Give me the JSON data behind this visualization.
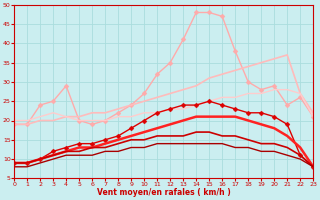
{
  "xlabel": "Vent moyen/en rafales ( km/h )",
  "xlim": [
    0,
    23
  ],
  "ylim": [
    5,
    50
  ],
  "yticks": [
    5,
    10,
    15,
    20,
    25,
    30,
    35,
    40,
    45,
    50
  ],
  "xticks": [
    0,
    1,
    2,
    3,
    4,
    5,
    6,
    7,
    8,
    9,
    10,
    11,
    12,
    13,
    14,
    15,
    16,
    17,
    18,
    19,
    20,
    21,
    22,
    23
  ],
  "bg_color": "#cbeef0",
  "grid_color": "#aadddd",
  "series": [
    {
      "x": [
        0,
        1,
        2,
        3,
        4,
        5,
        6,
        7,
        8,
        9,
        10,
        11,
        12,
        13,
        14,
        15,
        16,
        17,
        18,
        19,
        20,
        21,
        22,
        23
      ],
      "y": [
        19,
        19,
        24,
        25,
        29,
        20,
        19,
        20,
        22,
        24,
        27,
        32,
        35,
        41,
        48,
        48,
        47,
        38,
        30,
        28,
        29,
        24,
        26,
        21
      ],
      "color": "#ffaaaa",
      "marker": "D",
      "markersize": 2.5,
      "linewidth": 1.0
    },
    {
      "x": [
        0,
        1,
        2,
        3,
        4,
        5,
        6,
        7,
        8,
        9,
        10,
        11,
        12,
        13,
        14,
        15,
        16,
        17,
        18,
        19,
        20,
        21,
        22,
        23
      ],
      "y": [
        19,
        19,
        20,
        20,
        21,
        21,
        22,
        22,
        23,
        24,
        25,
        26,
        27,
        28,
        29,
        31,
        32,
        33,
        34,
        35,
        36,
        37,
        27,
        22
      ],
      "color": "#ffbbbb",
      "marker": null,
      "markersize": 0,
      "linewidth": 1.2
    },
    {
      "x": [
        0,
        1,
        2,
        3,
        4,
        5,
        6,
        7,
        8,
        9,
        10,
        11,
        12,
        13,
        14,
        15,
        16,
        17,
        18,
        19,
        20,
        21,
        22,
        23
      ],
      "y": [
        20,
        20,
        21,
        22,
        21,
        20,
        20,
        20,
        21,
        21,
        22,
        22,
        23,
        23,
        24,
        25,
        26,
        26,
        27,
        27,
        28,
        28,
        27,
        21
      ],
      "color": "#ffcccc",
      "marker": null,
      "markersize": 0,
      "linewidth": 1.0
    },
    {
      "x": [
        0,
        1,
        2,
        3,
        4,
        5,
        6,
        7,
        8,
        9,
        10,
        11,
        12,
        13,
        14,
        15,
        16,
        17,
        18,
        19,
        20,
        21,
        22,
        23
      ],
      "y": [
        9,
        9,
        10,
        12,
        13,
        14,
        14,
        15,
        16,
        18,
        20,
        22,
        23,
        24,
        24,
        25,
        24,
        23,
        22,
        22,
        21,
        19,
        11,
        8
      ],
      "color": "#dd0000",
      "marker": "D",
      "markersize": 2.5,
      "linewidth": 1.0
    },
    {
      "x": [
        0,
        1,
        2,
        3,
        4,
        5,
        6,
        7,
        8,
        9,
        10,
        11,
        12,
        13,
        14,
        15,
        16,
        17,
        18,
        19,
        20,
        21,
        22,
        23
      ],
      "y": [
        9,
        9,
        10,
        11,
        12,
        13,
        13,
        14,
        15,
        16,
        17,
        18,
        19,
        20,
        21,
        21,
        21,
        21,
        20,
        19,
        18,
        16,
        13,
        8
      ],
      "color": "#ff2222",
      "marker": null,
      "markersize": 0,
      "linewidth": 1.8
    },
    {
      "x": [
        0,
        1,
        2,
        3,
        4,
        5,
        6,
        7,
        8,
        9,
        10,
        11,
        12,
        13,
        14,
        15,
        16,
        17,
        18,
        19,
        20,
        21,
        22,
        23
      ],
      "y": [
        9,
        9,
        10,
        11,
        12,
        12,
        13,
        13,
        14,
        15,
        15,
        16,
        16,
        16,
        17,
        17,
        16,
        16,
        15,
        14,
        14,
        13,
        11,
        8
      ],
      "color": "#cc0000",
      "marker": null,
      "markersize": 0,
      "linewidth": 1.2
    },
    {
      "x": [
        0,
        1,
        2,
        3,
        4,
        5,
        6,
        7,
        8,
        9,
        10,
        11,
        12,
        13,
        14,
        15,
        16,
        17,
        18,
        19,
        20,
        21,
        22,
        23
      ],
      "y": [
        8,
        8,
        9,
        10,
        11,
        11,
        11,
        12,
        12,
        13,
        13,
        14,
        14,
        14,
        14,
        14,
        14,
        13,
        13,
        12,
        12,
        11,
        10,
        8
      ],
      "color": "#aa0000",
      "marker": null,
      "markersize": 0,
      "linewidth": 1.0
    }
  ]
}
